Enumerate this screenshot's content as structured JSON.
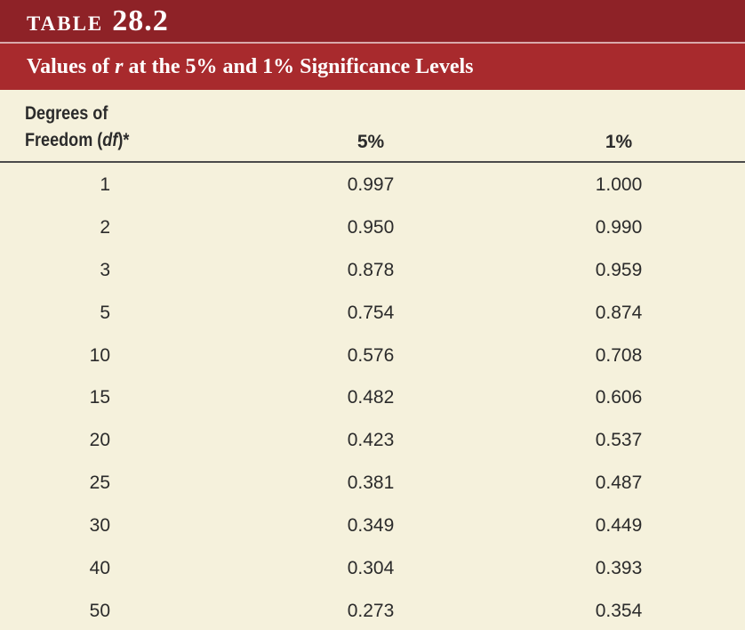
{
  "table": {
    "label_word": "TABLE",
    "label_number": "28.2",
    "title_prefix": "Values of ",
    "title_var": "r",
    "title_suffix": " at the 5% and 1% Significance Levels",
    "headers": {
      "df_line1": "Degrees of",
      "df_line2_prefix": "Freedom (",
      "df_line2_var": "df",
      "df_line2_suffix": ")*",
      "col_5": "5%",
      "col_1": "1%"
    },
    "rows": [
      {
        "df": "1",
        "p5": "0.997",
        "p1": "1.000"
      },
      {
        "df": "2",
        "p5": "0.950",
        "p1": "0.990"
      },
      {
        "df": "3",
        "p5": "0.878",
        "p1": "0.959"
      },
      {
        "df": "5",
        "p5": "0.754",
        "p1": "0.874"
      },
      {
        "df": "10",
        "p5": "0.576",
        "p1": "0.708"
      },
      {
        "df": "15",
        "p5": "0.482",
        "p1": "0.606"
      },
      {
        "df": "20",
        "p5": "0.423",
        "p1": "0.537"
      },
      {
        "df": "25",
        "p5": "0.381",
        "p1": "0.487"
      },
      {
        "df": "30",
        "p5": "0.349",
        "p1": "0.449"
      },
      {
        "df": "40",
        "p5": "0.304",
        "p1": "0.393"
      },
      {
        "df": "50",
        "p5": "0.273",
        "p1": "0.354"
      }
    ]
  },
  "colors": {
    "label_bar": "#8e2227",
    "title_bar": "#a82a2d",
    "background": "#f5f1dc",
    "text": "#2b2b2b"
  }
}
